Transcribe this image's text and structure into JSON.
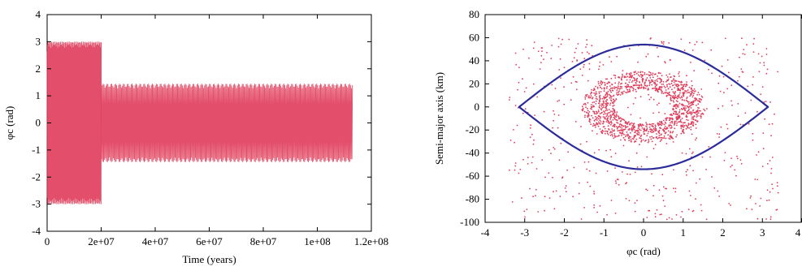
{
  "chart_data": [
    {
      "type": "line",
      "xlabel": "Time (years)",
      "ylabel": "φc (rad)",
      "xlim": [
        0,
        120000000
      ],
      "ylim": [
        -4,
        4
      ],
      "x_ticks": [
        "0",
        "2e+07",
        "4e+07",
        "6e+07",
        "8e+07",
        "1e+08",
        "1.2e+08"
      ],
      "y_ticks": [
        "-4",
        "-3",
        "-2",
        "-1",
        "0",
        "1",
        "2",
        "3",
        "4"
      ],
      "series": [
        {
          "color": "#e03c5a",
          "segments": [
            {
              "t_start": 0,
              "t_end": 20000000,
              "amplitude": 3.0
            },
            {
              "t_start": 20000000,
              "t_end": 113000000,
              "amplitude": 1.45
            }
          ]
        }
      ],
      "grid": false
    },
    {
      "type": "scatter",
      "xlabel": "φc (rad)",
      "ylabel": "Semi-major axis (km)",
      "xlim": [
        -4,
        4
      ],
      "ylim": [
        -100,
        80
      ],
      "x_ticks": [
        "-4",
        "-3",
        "-2",
        "-1",
        "0",
        "1",
        "2",
        "3",
        "4"
      ],
      "y_ticks": [
        "-100",
        "-80",
        "-60",
        "-40",
        "-20",
        "0",
        "20",
        "40",
        "60",
        "80"
      ],
      "series": [
        {
          "kind": "points",
          "color": "#e03c5a"
        },
        {
          "kind": "separatrix",
          "color": "#2b2b9a",
          "x_range": [
            -3.14,
            3.14
          ],
          "max_y": 54
        }
      ],
      "grid": false
    }
  ]
}
